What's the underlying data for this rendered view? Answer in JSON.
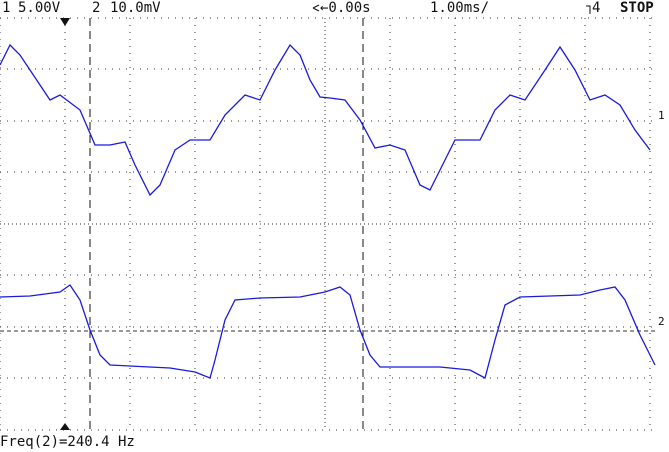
{
  "header": {
    "ch1_label": "1",
    "ch1_scale": "5.00V",
    "ch2_label": "2",
    "ch2_scale": "10.0mV",
    "time_offset": "←0.00s",
    "time_scale": "1.00ms/",
    "trigger": "4",
    "status": "STOP"
  },
  "markers": {
    "ch1": "1",
    "ch2": "2"
  },
  "footer": {
    "measurement": "Freq(2)=240.4 Hz"
  }
}
